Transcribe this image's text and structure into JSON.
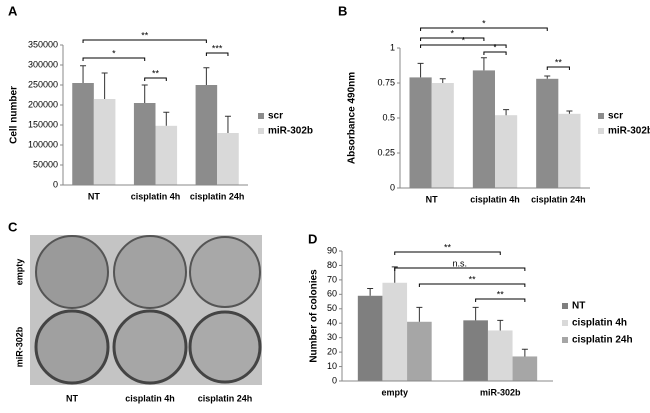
{
  "panel_labels": [
    "A",
    "B",
    "C",
    "D"
  ],
  "image_panel": {
    "row_labels": [
      "empty",
      "miR-302b"
    ],
    "column_labels": [
      "NT",
      "cisplatin 4h",
      "cisplatin 24h"
    ]
  },
  "chart_data": [
    {
      "type": "bar",
      "ylabel": "Cell number",
      "categories": [
        "NT",
        "cisplatin 4h",
        "cisplatin 24h"
      ],
      "series": [
        {
          "name": "scr",
          "color": "#8c8c8c",
          "values": [
            255000,
            205000,
            250000
          ],
          "errors": [
            43000,
            45000,
            43000
          ]
        },
        {
          "name": "miR-302b",
          "color": "#d9d9d9",
          "values": [
            215000,
            148000,
            130000
          ],
          "errors": [
            65000,
            34000,
            42000
          ]
        }
      ],
      "ylim": [
        0,
        350000
      ],
      "yticks": [
        0,
        50000,
        100000,
        150000,
        200000,
        250000,
        300000,
        350000
      ],
      "annotations": [
        "**",
        "*",
        "***",
        "**"
      ]
    },
    {
      "type": "bar",
      "ylabel": "Absorbance 490nm",
      "categories": [
        "NT",
        "cisplatin 4h",
        "cisplatin 24h"
      ],
      "series": [
        {
          "name": "scr",
          "color": "#8c8c8c",
          "values": [
            0.79,
            0.84,
            0.78
          ],
          "errors": [
            0.1,
            0.09,
            0.02
          ]
        },
        {
          "name": "miR-302b",
          "color": "#d9d9d9",
          "values": [
            0.75,
            0.52,
            0.53
          ],
          "errors": [
            0.03,
            0.04,
            0.02
          ]
        }
      ],
      "ylim": [
        0,
        1
      ],
      "yticks": [
        0,
        0.25,
        0.5,
        0.75,
        1
      ],
      "annotations": [
        "*",
        "*",
        "*",
        "*",
        "**"
      ]
    },
    {
      "type": "bar",
      "ylabel": "Number of colonies",
      "categories": [
        "empty",
        "miR-302b"
      ],
      "series": [
        {
          "name": "NT",
          "color": "#7f7f7f",
          "values": [
            59,
            42
          ],
          "errors": [
            5,
            9
          ]
        },
        {
          "name": "cisplatin 4h",
          "color": "#d9d9d9",
          "values": [
            68,
            35
          ],
          "errors": [
            11,
            7
          ]
        },
        {
          "name": "cisplatin 24h",
          "color": "#a6a6a6",
          "values": [
            41,
            17
          ],
          "errors": [
            10,
            5
          ]
        }
      ],
      "ylim": [
        0,
        90
      ],
      "yticks": [
        0,
        10,
        20,
        30,
        40,
        50,
        60,
        70,
        80,
        90
      ],
      "annotations": [
        "**",
        "n.s.",
        "**",
        "**"
      ]
    }
  ]
}
